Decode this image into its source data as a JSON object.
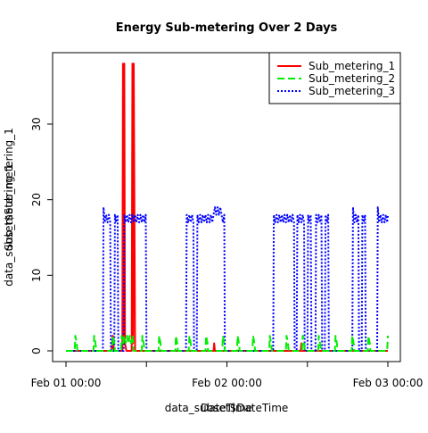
{
  "chart_data": {
    "type": "line",
    "title": "Energy Sub-metering Over 2 Days",
    "xlabel_overlays": [
      "data_subset$DateTime",
      "DateTime"
    ],
    "ylabel_overlays": [
      "data_subset$Sub_metering_1",
      "Sub_metering_1"
    ],
    "x_ticks": [
      {
        "hours": 0,
        "label": "Feb 01 00:00"
      },
      {
        "hours": 24,
        "label": "Feb 02 00:00"
      },
      {
        "hours": 48,
        "label": "Feb 03 00:00"
      }
    ],
    "y_ticks": [
      0,
      10,
      20,
      30
    ],
    "xlim_hours": [
      0,
      48
    ],
    "ylim": [
      -1,
      38.5
    ],
    "legend_position": "top-right",
    "grid": false,
    "series": [
      {
        "name": "Sub_metering_1",
        "color": "#ff0000",
        "dash": "solid",
        "points": [
          [
            0,
            0
          ],
          [
            6.8,
            0
          ],
          [
            7.0,
            2
          ],
          [
            7.1,
            0
          ],
          [
            8.4,
            0
          ],
          [
            8.5,
            38
          ],
          [
            8.6,
            1
          ],
          [
            8.7,
            38
          ],
          [
            8.8,
            1
          ],
          [
            9.0,
            0
          ],
          [
            9.8,
            0
          ],
          [
            9.9,
            38
          ],
          [
            10.0,
            1
          ],
          [
            10.1,
            38
          ],
          [
            10.3,
            0
          ],
          [
            22,
            0
          ],
          [
            22.1,
            1
          ],
          [
            22.2,
            0
          ],
          [
            35,
            0
          ],
          [
            35.1,
            1
          ],
          [
            35.2,
            0
          ],
          [
            48,
            0
          ]
        ]
      },
      {
        "name": "Sub_metering_2",
        "color": "#00ee00",
        "dash": "dashed",
        "points": [
          [
            0,
            0
          ],
          [
            1.3,
            0
          ],
          [
            1.4,
            2
          ],
          [
            1.6,
            1
          ],
          [
            1.7,
            0
          ],
          [
            4.1,
            0
          ],
          [
            4.2,
            2
          ],
          [
            4.4,
            1
          ],
          [
            4.5,
            0
          ],
          [
            6.9,
            0
          ],
          [
            7.0,
            2
          ],
          [
            7.2,
            1
          ],
          [
            7.3,
            0
          ],
          [
            8.2,
            0
          ],
          [
            8.3,
            2
          ],
          [
            8.5,
            1
          ],
          [
            8.7,
            2
          ],
          [
            8.9,
            1
          ],
          [
            9.1,
            2
          ],
          [
            9.3,
            1
          ],
          [
            9.5,
            2
          ],
          [
            9.7,
            1
          ],
          [
            9.9,
            2
          ],
          [
            10.1,
            0
          ],
          [
            11.3,
            0
          ],
          [
            11.4,
            2
          ],
          [
            11.6,
            1
          ],
          [
            11.7,
            0
          ],
          [
            13.8,
            0
          ],
          [
            13.9,
            2
          ],
          [
            14.1,
            1
          ],
          [
            14.2,
            0
          ],
          [
            16.3,
            0
          ],
          [
            16.4,
            2
          ],
          [
            16.6,
            1
          ],
          [
            16.7,
            0
          ],
          [
            18.3,
            0
          ],
          [
            18.4,
            2
          ],
          [
            18.6,
            1
          ],
          [
            18.7,
            0
          ],
          [
            20.8,
            0
          ],
          [
            20.9,
            2
          ],
          [
            21.1,
            1
          ],
          [
            21.2,
            0
          ],
          [
            23.3,
            0
          ],
          [
            23.4,
            2
          ],
          [
            23.6,
            1
          ],
          [
            23.7,
            0
          ],
          [
            25.5,
            0
          ],
          [
            25.6,
            2
          ],
          [
            25.8,
            1
          ],
          [
            25.9,
            0
          ],
          [
            27.8,
            0
          ],
          [
            27.9,
            2
          ],
          [
            28.1,
            1
          ],
          [
            28.2,
            0
          ],
          [
            30.3,
            0
          ],
          [
            30.4,
            2
          ],
          [
            30.6,
            1
          ],
          [
            30.7,
            0
          ],
          [
            32.8,
            0
          ],
          [
            32.9,
            2
          ],
          [
            33.1,
            1
          ],
          [
            33.2,
            0
          ],
          [
            35.2,
            0
          ],
          [
            35.3,
            2
          ],
          [
            35.5,
            1
          ],
          [
            35.6,
            0
          ],
          [
            37.6,
            0
          ],
          [
            37.7,
            2
          ],
          [
            37.9,
            1
          ],
          [
            38.0,
            0
          ],
          [
            40.1,
            0
          ],
          [
            40.2,
            2
          ],
          [
            40.4,
            1
          ],
          [
            40.5,
            0
          ],
          [
            42.6,
            0
          ],
          [
            42.7,
            2
          ],
          [
            42.9,
            1
          ],
          [
            43.0,
            0
          ],
          [
            45.0,
            0
          ],
          [
            45.1,
            2
          ],
          [
            45.3,
            1
          ],
          [
            45.4,
            0
          ],
          [
            47.9,
            0
          ],
          [
            48.0,
            2
          ]
        ]
      },
      {
        "name": "Sub_metering_3",
        "color": "#0000ff",
        "dash": "dotted",
        "points": [
          [
            0,
            0
          ],
          [
            5.5,
            0
          ],
          [
            5.6,
            19
          ],
          [
            5.8,
            17
          ],
          [
            6.0,
            18
          ],
          [
            6.2,
            17
          ],
          [
            6.4,
            18
          ],
          [
            6.6,
            17
          ],
          [
            6.7,
            0
          ],
          [
            7.2,
            0
          ],
          [
            7.3,
            18
          ],
          [
            7.5,
            17
          ],
          [
            7.7,
            18
          ],
          [
            7.8,
            0
          ],
          [
            8.6,
            0
          ],
          [
            8.7,
            18
          ],
          [
            8.9,
            17
          ],
          [
            9.1,
            18
          ],
          [
            9.3,
            17
          ],
          [
            9.5,
            18
          ],
          [
            9.7,
            17
          ],
          [
            9.9,
            18
          ],
          [
            10.1,
            17
          ],
          [
            10.3,
            18
          ],
          [
            10.5,
            17
          ],
          [
            10.7,
            18
          ],
          [
            10.9,
            17
          ],
          [
            11.1,
            18
          ],
          [
            11.3,
            17
          ],
          [
            11.5,
            18
          ],
          [
            11.7,
            17
          ],
          [
            11.9,
            18
          ],
          [
            12.0,
            0
          ],
          [
            17.9,
            0
          ],
          [
            18.0,
            18
          ],
          [
            18.2,
            17
          ],
          [
            18.4,
            18
          ],
          [
            18.6,
            17
          ],
          [
            18.8,
            18
          ],
          [
            19.0,
            17
          ],
          [
            19.1,
            0
          ],
          [
            19.5,
            0
          ],
          [
            19.6,
            18
          ],
          [
            19.8,
            17
          ],
          [
            20.0,
            18
          ],
          [
            20.2,
            17
          ],
          [
            20.4,
            18
          ],
          [
            20.6,
            17
          ],
          [
            20.8,
            18
          ],
          [
            21.0,
            17
          ],
          [
            21.2,
            18
          ],
          [
            21.4,
            17
          ],
          [
            21.6,
            18
          ],
          [
            21.8,
            17
          ],
          [
            22.0,
            18
          ],
          [
            22.2,
            19
          ],
          [
            22.4,
            18
          ],
          [
            22.6,
            19
          ],
          [
            22.8,
            18
          ],
          [
            23.0,
            19
          ],
          [
            23.2,
            18
          ],
          [
            23.4,
            17
          ],
          [
            23.6,
            18
          ],
          [
            23.7,
            0
          ],
          [
            30.9,
            0
          ],
          [
            31.0,
            18
          ],
          [
            31.2,
            17
          ],
          [
            31.4,
            18
          ],
          [
            31.6,
            17
          ],
          [
            31.8,
            18
          ],
          [
            32.0,
            17
          ],
          [
            32.2,
            18
          ],
          [
            32.4,
            17
          ],
          [
            32.6,
            18
          ],
          [
            32.8,
            17
          ],
          [
            33.0,
            18
          ],
          [
            33.2,
            17
          ],
          [
            33.4,
            18
          ],
          [
            33.6,
            17
          ],
          [
            33.8,
            18
          ],
          [
            34.0,
            17
          ],
          [
            34.1,
            0
          ],
          [
            34.4,
            0
          ],
          [
            34.5,
            18
          ],
          [
            34.7,
            17
          ],
          [
            34.9,
            18
          ],
          [
            35.1,
            17
          ],
          [
            35.3,
            18
          ],
          [
            35.5,
            17
          ],
          [
            35.6,
            0
          ],
          [
            36.0,
            0
          ],
          [
            36.1,
            18
          ],
          [
            36.3,
            17
          ],
          [
            36.5,
            18
          ],
          [
            36.6,
            0
          ],
          [
            37.2,
            0
          ],
          [
            37.3,
            18
          ],
          [
            37.5,
            17
          ],
          [
            37.7,
            18
          ],
          [
            37.9,
            17
          ],
          [
            38.1,
            18
          ],
          [
            38.2,
            0
          ],
          [
            38.6,
            0
          ],
          [
            38.7,
            18
          ],
          [
            38.9,
            17
          ],
          [
            39.1,
            18
          ],
          [
            39.2,
            0
          ],
          [
            42.7,
            0
          ],
          [
            42.8,
            19
          ],
          [
            43.0,
            17
          ],
          [
            43.2,
            18
          ],
          [
            43.4,
            17
          ],
          [
            43.6,
            18
          ],
          [
            43.7,
            0
          ],
          [
            44.1,
            0
          ],
          [
            44.2,
            18
          ],
          [
            44.4,
            17
          ],
          [
            44.6,
            18
          ],
          [
            44.7,
            0
          ],
          [
            46.4,
            0
          ],
          [
            46.5,
            19
          ],
          [
            46.7,
            17
          ],
          [
            46.9,
            18
          ],
          [
            47.1,
            17
          ],
          [
            47.3,
            18
          ],
          [
            47.5,
            17
          ],
          [
            47.7,
            18
          ],
          [
            47.9,
            17
          ],
          [
            48.0,
            18
          ]
        ]
      }
    ]
  }
}
